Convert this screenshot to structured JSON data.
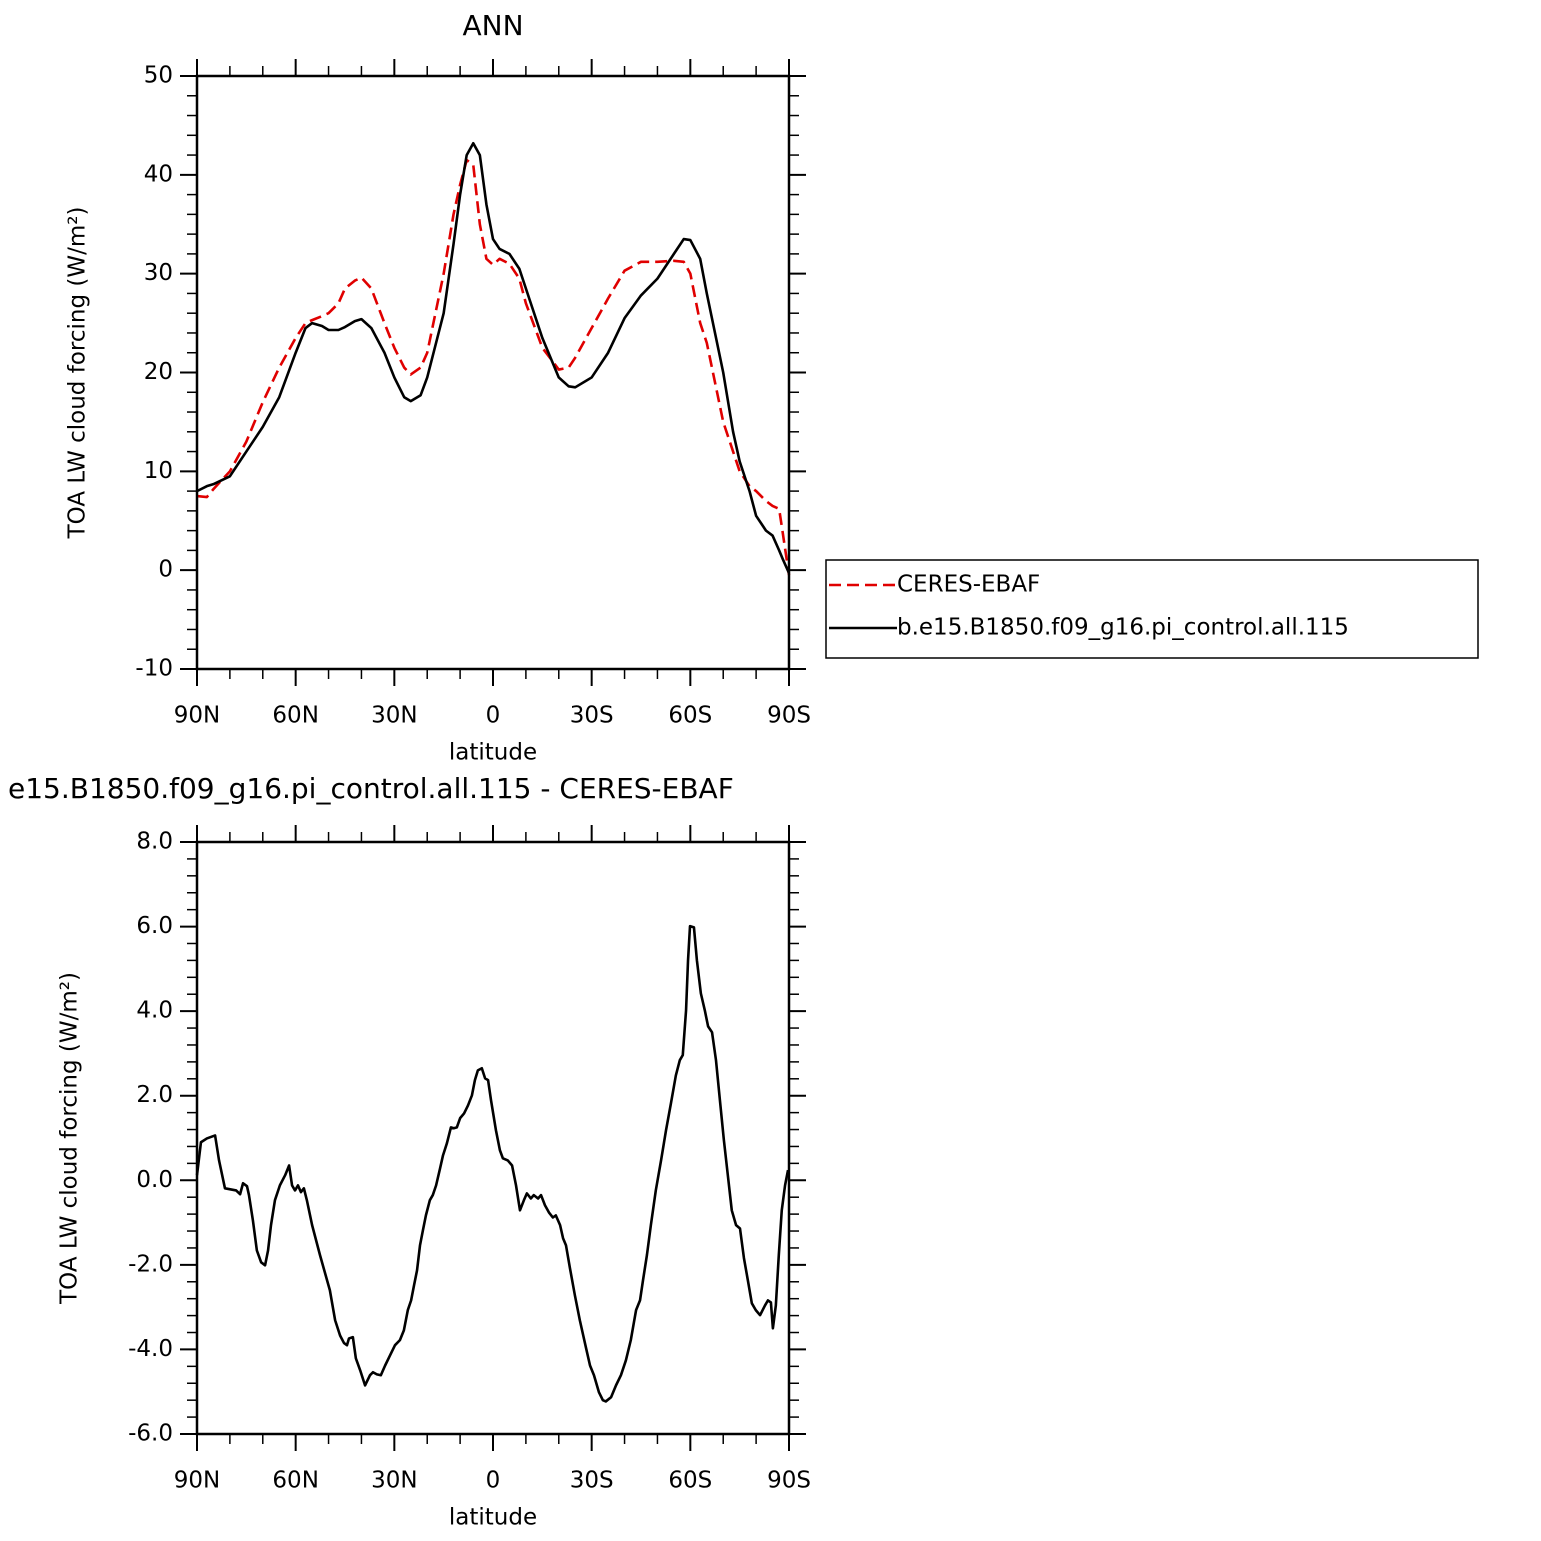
{
  "chart_data": [
    {
      "type": "line",
      "title": "ANN",
      "xlabel": "latitude",
      "ylabel": "TOA LW cloud forcing (W/m²)",
      "x": [
        90,
        87,
        85,
        80,
        75,
        70,
        65,
        60,
        57,
        55,
        52,
        50,
        47,
        45,
        42,
        40,
        37,
        33,
        30,
        27,
        25,
        22,
        20,
        15,
        12,
        10,
        8,
        6,
        4,
        2,
        0,
        -2,
        -5,
        -8,
        -10,
        -15,
        -20,
        -23,
        -25,
        -30,
        -35,
        -40,
        -45,
        -50,
        -55,
        -58,
        -60,
        -63,
        -65,
        -70,
        -73,
        -75,
        -78,
        -80,
        -83,
        -85,
        -87,
        -88,
        -90
      ],
      "series": [
        {
          "name": "CERES-EBAF",
          "color": "#e00000",
          "dash": "dashed",
          "values": [
            7.5,
            7.4,
            8.2,
            10,
            13,
            17,
            20.5,
            23.5,
            25,
            25.3,
            25.7,
            26,
            27,
            28.5,
            29.3,
            29.6,
            28.5,
            25,
            22.5,
            20.5,
            19.8,
            20.5,
            22,
            30,
            36,
            39,
            41.5,
            41,
            35,
            31.5,
            30.9,
            31.5,
            31,
            29.5,
            27,
            22.5,
            20.3,
            20.5,
            21.5,
            24.5,
            27.5,
            30.3,
            31.2,
            31.2,
            31.3,
            31.2,
            30,
            25,
            23,
            15,
            12,
            10,
            8.5,
            8,
            7,
            6.5,
            6.2,
            4,
            -0.5
          ]
        },
        {
          "name": "b.e15.B1850.f09_g16.pi_control.all.115",
          "color": "#000000",
          "dash": "solid",
          "values": [
            8,
            8.5,
            8.7,
            9.5,
            12,
            14.5,
            17.5,
            22,
            24.5,
            25,
            24.7,
            24.3,
            24.3,
            24.6,
            25.2,
            25.4,
            24.5,
            22,
            19.5,
            17.5,
            17.1,
            17.7,
            19.5,
            26,
            33,
            38,
            42,
            43.2,
            42,
            37,
            33.5,
            32.5,
            32,
            30.5,
            28.5,
            23.5,
            19.5,
            18.6,
            18.5,
            19.5,
            22,
            25.5,
            27.8,
            29.5,
            32,
            33.5,
            33.4,
            31.5,
            28,
            20,
            14,
            11,
            8,
            5.5,
            4,
            3.5,
            2,
            1.2,
            -0.3
          ]
        }
      ],
      "xlim": [
        90,
        -90
      ],
      "xticks": [
        {
          "value": 90,
          "label": "90N"
        },
        {
          "value": 60,
          "label": "60N"
        },
        {
          "value": 30,
          "label": "30N"
        },
        0,
        {
          "value": -30,
          "label": "30S"
        },
        {
          "value": -60,
          "label": "60S"
        },
        {
          "value": -90,
          "label": "90S"
        }
      ],
      "ylim": [
        -10,
        50
      ],
      "yticks": [
        -10,
        0,
        10,
        20,
        30,
        40,
        50
      ],
      "legend": "right"
    },
    {
      "type": "line",
      "title": "e15.B1850.f09_g16.pi_control.all.115 - CERES-EBAF",
      "xlabel": "latitude",
      "ylabel": "TOA LW cloud forcing (W/m²)",
      "x": [
        90,
        88.8,
        87,
        84.5,
        83.3,
        81.5,
        78.1,
        76.9,
        76,
        74.8,
        74.2,
        73,
        71.8,
        70.5,
        69.3,
        68.4,
        67.5,
        66.3,
        64.8,
        63.2,
        62,
        61.1,
        60.2,
        59.3,
        58.4,
        57.5,
        56.6,
        55,
        52.6,
        49.6,
        48,
        46.5,
        45.3,
        44.4,
        43.8,
        42.6,
        41.7,
        40.4,
        38.9,
        37.4,
        36.5,
        35.3,
        34.1,
        32.8,
        31.3,
        29.8,
        28.3,
        27.1,
        25.9,
        24.9,
        24,
        23.1,
        22.2,
        21.3,
        20.4,
        19.2,
        18.3,
        17.3,
        16.1,
        15.2,
        14,
        12.8,
        11.9,
        11,
        10,
        8.8,
        7.6,
        6.4,
        5.5,
        4.6,
        3.4,
        2.4,
        1.5,
        0.6,
        -0.9,
        -2.1,
        -3,
        -4.5,
        -5.8,
        -7,
        -8.2,
        -9.4,
        -10.3,
        -11.5,
        -12.4,
        -13.7,
        -14.6,
        -15.8,
        -17,
        -18.2,
        -19.1,
        -20.4,
        -21.3,
        -22.2,
        -23.4,
        -24.9,
        -26.4,
        -28.3,
        -29.5,
        -30.7,
        -32.2,
        -33.4,
        -34.3,
        -35.9,
        -37.4,
        -38.9,
        -40.4,
        -41.9,
        -43.5,
        -44.7,
        -45.6,
        -46.8,
        -48,
        -49.5,
        -51.1,
        -52.6,
        -54.1,
        -55.6,
        -56.8,
        -57.7,
        -58.7,
        -59.3,
        -59.9,
        -61.1,
        -62,
        -63.2,
        -64.4,
        -65.4,
        -66.6,
        -67.8,
        -69,
        -70.2,
        -71.4,
        -72.6,
        -73.9,
        -75.1,
        -76.3,
        -77.5,
        -78.7,
        -79.9,
        -81.2,
        -82.7,
        -83.6,
        -84.5,
        -85.1,
        -86,
        -86.9,
        -87.8,
        -88.8,
        -89.7
      ],
      "series": [
        {
          "color": "#000000",
          "dash": "solid",
          "values": [
            0.12,
            0.9,
            0.99,
            1.06,
            0.47,
            -0.19,
            -0.24,
            -0.33,
            -0.07,
            -0.14,
            -0.35,
            -0.95,
            -1.66,
            -1.94,
            -2.01,
            -1.66,
            -1.06,
            -0.47,
            -0.12,
            0.12,
            0.35,
            -0.12,
            -0.24,
            -0.12,
            -0.28,
            -0.19,
            -0.47,
            -1.06,
            -1.77,
            -2.6,
            -3.31,
            -3.67,
            -3.85,
            -3.9,
            -3.74,
            -3.71,
            -4.21,
            -4.49,
            -4.85,
            -4.61,
            -4.54,
            -4.59,
            -4.61,
            -4.38,
            -4.14,
            -3.9,
            -3.78,
            -3.55,
            -3.07,
            -2.84,
            -2.48,
            -2.13,
            -1.54,
            -1.18,
            -0.83,
            -0.47,
            -0.35,
            -0.12,
            0.28,
            0.59,
            0.88,
            1.25,
            1.23,
            1.25,
            1.47,
            1.58,
            1.77,
            2.01,
            2.37,
            2.6,
            2.65,
            2.41,
            2.37,
            1.89,
            1.18,
            0.71,
            0.52,
            0.47,
            0.35,
            -0.12,
            -0.71,
            -0.47,
            -0.31,
            -0.43,
            -0.35,
            -0.43,
            -0.35,
            -0.59,
            -0.76,
            -0.88,
            -0.83,
            -1.06,
            -1.37,
            -1.54,
            -2.08,
            -2.72,
            -3.31,
            -3.97,
            -4.38,
            -4.61,
            -5.01,
            -5.2,
            -5.23,
            -5.13,
            -4.85,
            -4.61,
            -4.26,
            -3.78,
            -3.07,
            -2.84,
            -2.37,
            -1.77,
            -1.06,
            -0.24,
            0.47,
            1.18,
            1.82,
            2.48,
            2.84,
            2.96,
            4.02,
            5.2,
            6.01,
            5.98,
            5.2,
            4.42,
            4.02,
            3.64,
            3.5,
            2.84,
            1.89,
            0.95,
            0.12,
            -0.71,
            -1.06,
            -1.14,
            -1.84,
            -2.37,
            -2.91,
            -3.07,
            -3.19,
            -2.96,
            -2.84,
            -2.89,
            -3.5,
            -2.96,
            -1.77,
            -0.71,
            -0.12,
            0.24
          ]
        }
      ],
      "xlim": [
        90,
        -90
      ],
      "xticks": [
        {
          "value": 90,
          "label": "90N"
        },
        {
          "value": 60,
          "label": "60N"
        },
        {
          "value": 30,
          "label": "30N"
        },
        0,
        {
          "value": -30,
          "label": "30S"
        },
        {
          "value": -60,
          "label": "60S"
        },
        {
          "value": -90,
          "label": "90S"
        }
      ],
      "ylim": [
        -6,
        8
      ],
      "yticks": [
        {
          "value": -6,
          "label": "-6.0"
        },
        {
          "value": -4,
          "label": "-4.0"
        },
        {
          "value": -2,
          "label": "-2.0"
        },
        {
          "value": 0,
          "label": "0.0"
        },
        {
          "value": 2,
          "label": "2.0"
        },
        {
          "value": 4,
          "label": "4.0"
        },
        {
          "value": 6,
          "label": "6.0"
        },
        {
          "value": 8,
          "label": "8.0"
        }
      ]
    }
  ]
}
